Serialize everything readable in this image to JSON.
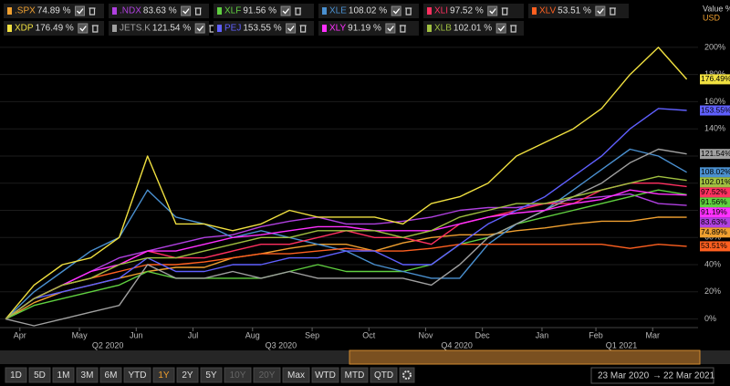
{
  "chart_data": {
    "type": "line",
    "axis_title": "Value %",
    "currency": "USD",
    "xlim": [
      -0.1,
      12.2
    ],
    "ylim": [
      -5,
      208
    ],
    "grid": true,
    "x": [
      0,
      0.5,
      1,
      1.5,
      2,
      2.5,
      3,
      3.5,
      4,
      4.5,
      5,
      5.5,
      6,
      6.5,
      7,
      7.5,
      8,
      8.5,
      9,
      9.5,
      10,
      10.5,
      11,
      11.5,
      12
    ],
    "xticks": [
      {
        "value": 0.25,
        "label": "Apr"
      },
      {
        "value": 1.3,
        "label": "May"
      },
      {
        "value": 2.3,
        "label": "Jun"
      },
      {
        "value": 3.3,
        "label": "Jul"
      },
      {
        "value": 4.35,
        "label": "Aug"
      },
      {
        "value": 5.4,
        "label": "Sep"
      },
      {
        "value": 6.4,
        "label": "Oct"
      },
      {
        "value": 7.4,
        "label": "Nov"
      },
      {
        "value": 8.4,
        "label": "Dec"
      },
      {
        "value": 9.45,
        "label": "Jan"
      },
      {
        "value": 10.4,
        "label": "Feb"
      },
      {
        "value": 11.4,
        "label": "Mar"
      }
    ],
    "quarter_ticks": [
      {
        "value": 1.8,
        "label": "Q2 2020"
      },
      {
        "value": 4.85,
        "label": "Q3 2020"
      },
      {
        "value": 7.95,
        "label": "Q4 2020"
      },
      {
        "value": 10.85,
        "label": "Q1 2021"
      }
    ],
    "yticks": [
      {
        "value": 0,
        "label": "0%"
      },
      {
        "value": 20,
        "label": "20%"
      },
      {
        "value": 40,
        "label": "40%"
      },
      {
        "value": 60,
        "label": "60%"
      },
      {
        "value": 80,
        "label": "80%"
      },
      {
        "value": 100,
        "label": "100%"
      },
      {
        "value": 120,
        "label": "120%"
      },
      {
        "value": 140,
        "label": "140%"
      },
      {
        "value": 160,
        "label": "160%"
      },
      {
        "value": 180,
        "label": "180%"
      },
      {
        "value": 200,
        "label": "200%"
      }
    ],
    "series": [
      {
        "name": ".SPX",
        "color": "#f0a030",
        "legend_label": "74.89 %",
        "end_label": "74.89%",
        "values": [
          0,
          12,
          20,
          25,
          30,
          35,
          38,
          38,
          45,
          48,
          52,
          55,
          55,
          50,
          56,
          60,
          62,
          62,
          65,
          67,
          70,
          72,
          72,
          75,
          74.89
        ]
      },
      {
        "name": ".NDX",
        "color": "#b040e0",
        "legend_label": "83.63 %",
        "end_label": "83.63%",
        "values": [
          0,
          15,
          25,
          35,
          45,
          50,
          55,
          60,
          62,
          68,
          72,
          75,
          70,
          70,
          72,
          75,
          80,
          82,
          82,
          85,
          88,
          90,
          92,
          85,
          83.63
        ]
      },
      {
        "name": "XLF",
        "color": "#60d040",
        "legend_label": "91.56 %",
        "end_label": "91.56%",
        "values": [
          0,
          10,
          15,
          20,
          25,
          35,
          30,
          30,
          30,
          30,
          35,
          40,
          35,
          35,
          35,
          40,
          55,
          60,
          70,
          75,
          80,
          85,
          90,
          95,
          91.56
        ]
      },
      {
        "name": "XLE",
        "color": "#4a90d0",
        "legend_label": "108.02 %",
        "end_label": "108.02%",
        "values": [
          0,
          20,
          35,
          50,
          60,
          95,
          75,
          70,
          60,
          65,
          60,
          55,
          50,
          40,
          35,
          30,
          30,
          55,
          70,
          80,
          95,
          110,
          125,
          120,
          108.02
        ]
      },
      {
        "name": "XLI",
        "color": "#ff3060",
        "legend_label": "97.52 %",
        "end_label": "97.52%",
        "values": [
          0,
          15,
          25,
          30,
          40,
          50,
          45,
          45,
          50,
          55,
          55,
          60,
          65,
          60,
          60,
          55,
          70,
          75,
          80,
          85,
          85,
          95,
          100,
          100,
          97.52
        ]
      },
      {
        "name": "XLV",
        "color": "#ff6020",
        "legend_label": "53.51 %",
        "end_label": "53.51%",
        "values": [
          0,
          15,
          25,
          30,
          35,
          40,
          40,
          42,
          45,
          48,
          48,
          50,
          52,
          50,
          50,
          52,
          55,
          55,
          55,
          55,
          55,
          55,
          52,
          55,
          53.51
        ]
      },
      {
        "name": "XDP",
        "color": "#f0e040",
        "legend_label": "176.49 %",
        "end_label": "176.49%",
        "values": [
          0,
          25,
          40,
          45,
          60,
          120,
          70,
          70,
          65,
          70,
          80,
          75,
          75,
          75,
          70,
          85,
          90,
          100,
          120,
          130,
          140,
          155,
          180,
          200,
          176.49
        ]
      },
      {
        "name": "JETS.K",
        "color": "#a0a0a0",
        "legend_label": "121.54 %",
        "end_label": "121.54%",
        "values": [
          0,
          -5,
          0,
          5,
          10,
          40,
          30,
          30,
          35,
          30,
          35,
          30,
          30,
          30,
          30,
          25,
          40,
          60,
          70,
          80,
          90,
          100,
          115,
          125,
          121.54
        ]
      },
      {
        "name": "PEJ",
        "color": "#6060ff",
        "legend_label": "153.55 %",
        "end_label": "153.55%",
        "values": [
          0,
          15,
          20,
          25,
          30,
          45,
          35,
          35,
          40,
          40,
          45,
          45,
          50,
          50,
          40,
          40,
          55,
          70,
          80,
          90,
          105,
          120,
          140,
          155,
          153.55
        ]
      },
      {
        "name": "XLY",
        "color": "#ff30ff",
        "legend_label": "91.19 %",
        "end_label": "91.19%",
        "values": [
          0,
          15,
          25,
          35,
          40,
          50,
          50,
          55,
          60,
          62,
          65,
          68,
          68,
          65,
          65,
          65,
          70,
          75,
          78,
          80,
          85,
          88,
          95,
          92,
          91.19
        ]
      },
      {
        "name": "XLB",
        "color": "#a0c040",
        "legend_label": "102.01 %",
        "end_label": "102.01%",
        "values": [
          0,
          15,
          25,
          30,
          40,
          45,
          45,
          50,
          55,
          60,
          60,
          65,
          65,
          65,
          60,
          65,
          75,
          80,
          85,
          85,
          90,
          95,
          100,
          105,
          102.01
        ]
      }
    ],
    "buttons": [
      "1D",
      "5D",
      "1M",
      "3M",
      "6M",
      "YTD",
      "1Y",
      "2Y",
      "5Y",
      "10Y",
      "20Y",
      "Max",
      "WTD",
      "MTD",
      "QTD"
    ],
    "active_button_index": 6,
    "disabled_button_indices": [
      9,
      10
    ],
    "range_start": "23 Mar 2020",
    "range_end": "22 Mar 2021"
  }
}
